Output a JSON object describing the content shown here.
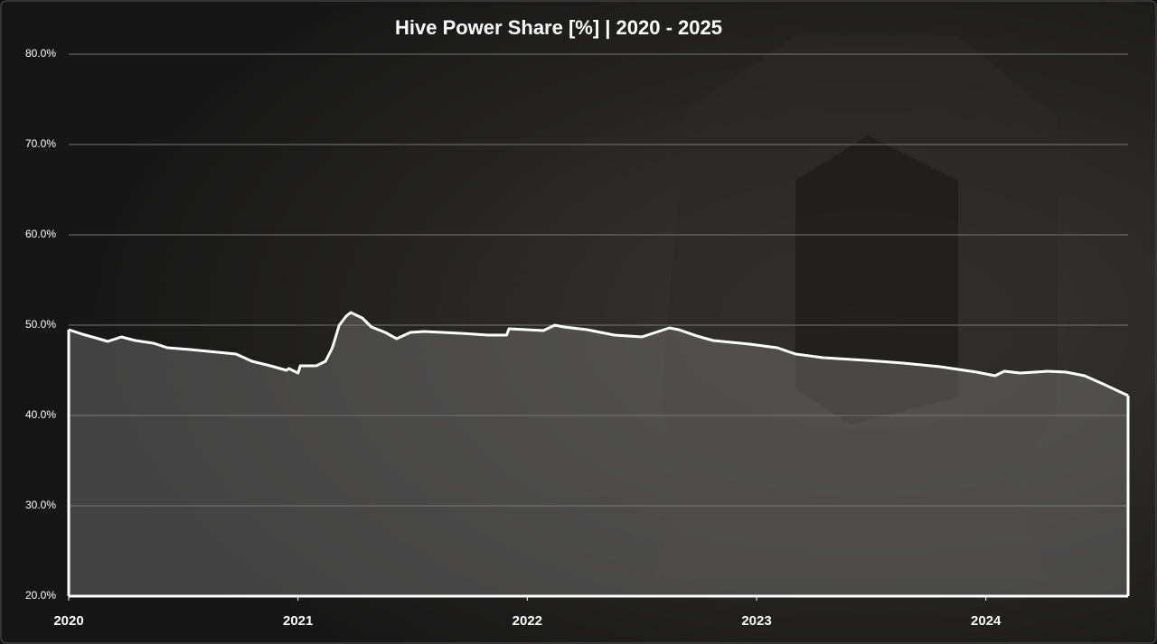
{
  "chart_data": {
    "type": "area",
    "title": "Hive Power Share [%] | 2020 - 2025",
    "x": [
      2020.0,
      2020.06,
      2020.13,
      2020.17,
      2020.23,
      2020.29,
      2020.37,
      2020.43,
      2020.53,
      2020.61,
      2020.73,
      2020.8,
      2020.88,
      2020.95,
      2020.96,
      2021.0,
      2021.01,
      2021.08,
      2021.12,
      2021.15,
      2021.18,
      2021.21,
      2021.23,
      2021.28,
      2021.32,
      2021.38,
      2021.43,
      2021.49,
      2021.55,
      2021.63,
      2021.71,
      2021.83,
      2021.91,
      2021.92,
      2022.07,
      2022.12,
      2022.16,
      2022.26,
      2022.38,
      2022.5,
      2022.62,
      2022.66,
      2022.74,
      2022.81,
      2022.97,
      2023.09,
      2023.17,
      2023.29,
      2023.48,
      2023.64,
      2023.8,
      2023.96,
      2024.04,
      2024.08,
      2024.15,
      2024.27,
      2024.35,
      2024.43,
      2024.51,
      2024.62
    ],
    "values": [
      49.5,
      49.0,
      48.5,
      48.2,
      48.7,
      48.3,
      48.0,
      47.5,
      47.3,
      47.1,
      46.8,
      46.0,
      45.5,
      45.0,
      45.2,
      44.7,
      45.5,
      45.5,
      46.0,
      47.5,
      50.0,
      51.0,
      51.4,
      50.8,
      49.8,
      49.2,
      48.5,
      49.2,
      49.3,
      49.2,
      49.1,
      48.9,
      48.9,
      49.6,
      49.4,
      50.0,
      49.8,
      49.5,
      48.9,
      48.7,
      49.7,
      49.5,
      48.8,
      48.3,
      47.9,
      47.5,
      46.8,
      46.4,
      46.1,
      45.8,
      45.4,
      44.8,
      44.4,
      44.9,
      44.7,
      44.9,
      44.8,
      44.4,
      43.5,
      42.2
    ],
    "color": "#ffffff",
    "xlim": [
      2020,
      2024.62
    ],
    "xticks": [
      2020,
      2021,
      2022,
      2023,
      2024
    ],
    "ylim": [
      20,
      80
    ],
    "yticks": [
      {
        "value": 20,
        "label": "20.0%"
      },
      {
        "value": 30,
        "label": "30.0%"
      },
      {
        "value": 40,
        "label": "40.0%"
      },
      {
        "value": 50,
        "label": "50.0%"
      },
      {
        "value": 60,
        "label": "60.0%"
      },
      {
        "value": 70,
        "label": "70.0%"
      },
      {
        "value": 80,
        "label": "80.0%"
      }
    ],
    "grid": true
  }
}
